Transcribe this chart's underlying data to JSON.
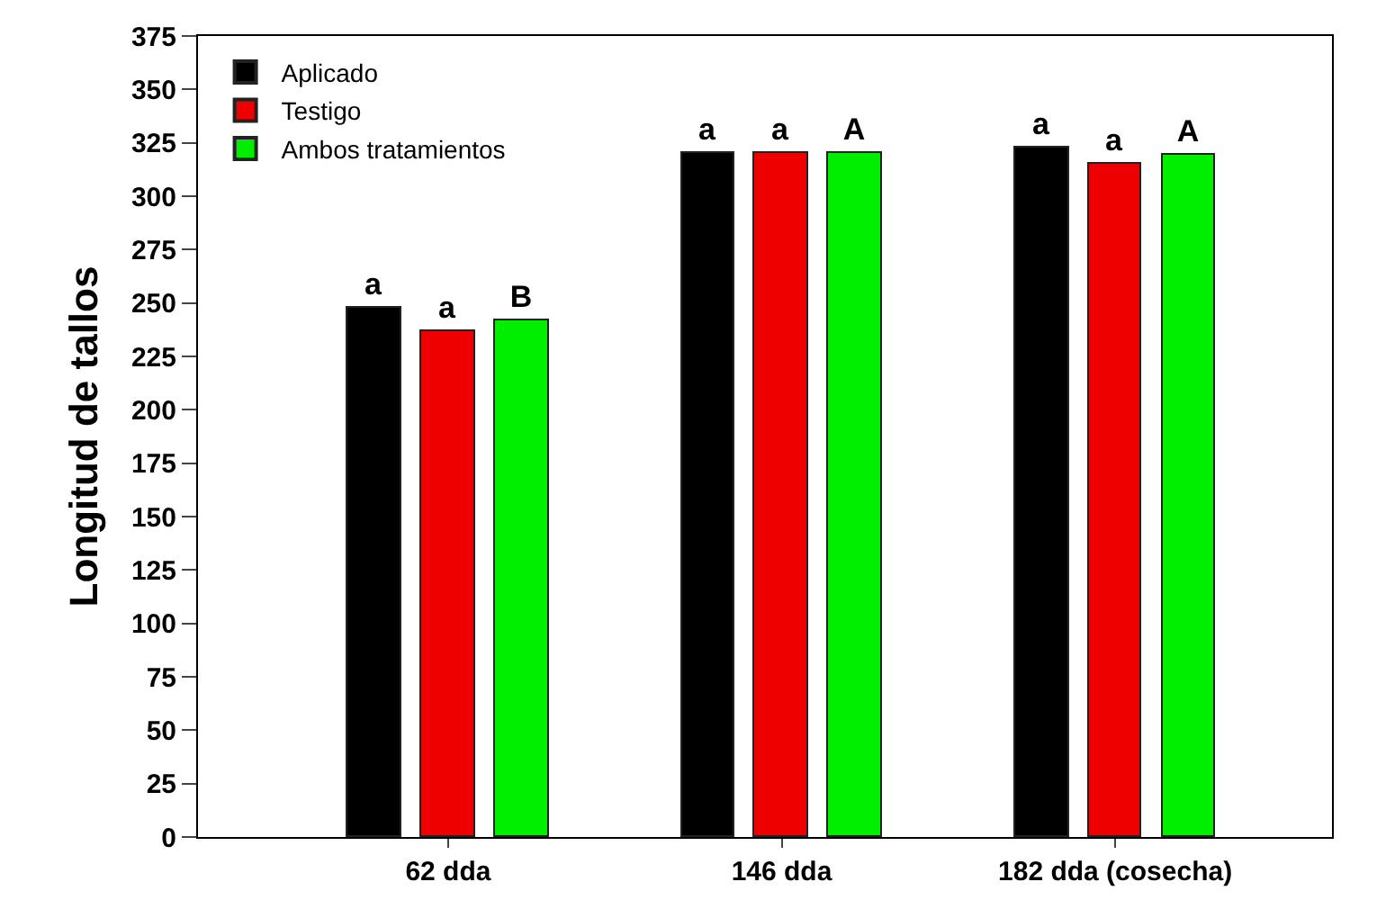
{
  "chart_data": {
    "type": "bar",
    "ylabel": "Longitud de tallos",
    "categories": [
      "62 dda",
      "146 dda",
      "182 dda (cosecha)"
    ],
    "series": [
      {
        "name": "Aplicado",
        "color": "#000000",
        "values": [
          248,
          320,
          323
        ],
        "value_labels": [
          "a",
          "a",
          "a"
        ]
      },
      {
        "name": "Testigo",
        "color": "#ee0000",
        "values": [
          237,
          320,
          315
        ],
        "value_labels": [
          "a",
          "a",
          "a"
        ]
      },
      {
        "name": "Ambos tratamientos",
        "color": "#00ee00",
        "values": [
          242,
          320,
          319
        ],
        "value_labels": [
          "B",
          "A",
          "A"
        ]
      }
    ],
    "ylim": [
      0,
      375
    ],
    "yticks": [
      0,
      25,
      50,
      75,
      100,
      125,
      150,
      175,
      200,
      225,
      250,
      275,
      300,
      325,
      350,
      375
    ],
    "legend": "top left"
  }
}
